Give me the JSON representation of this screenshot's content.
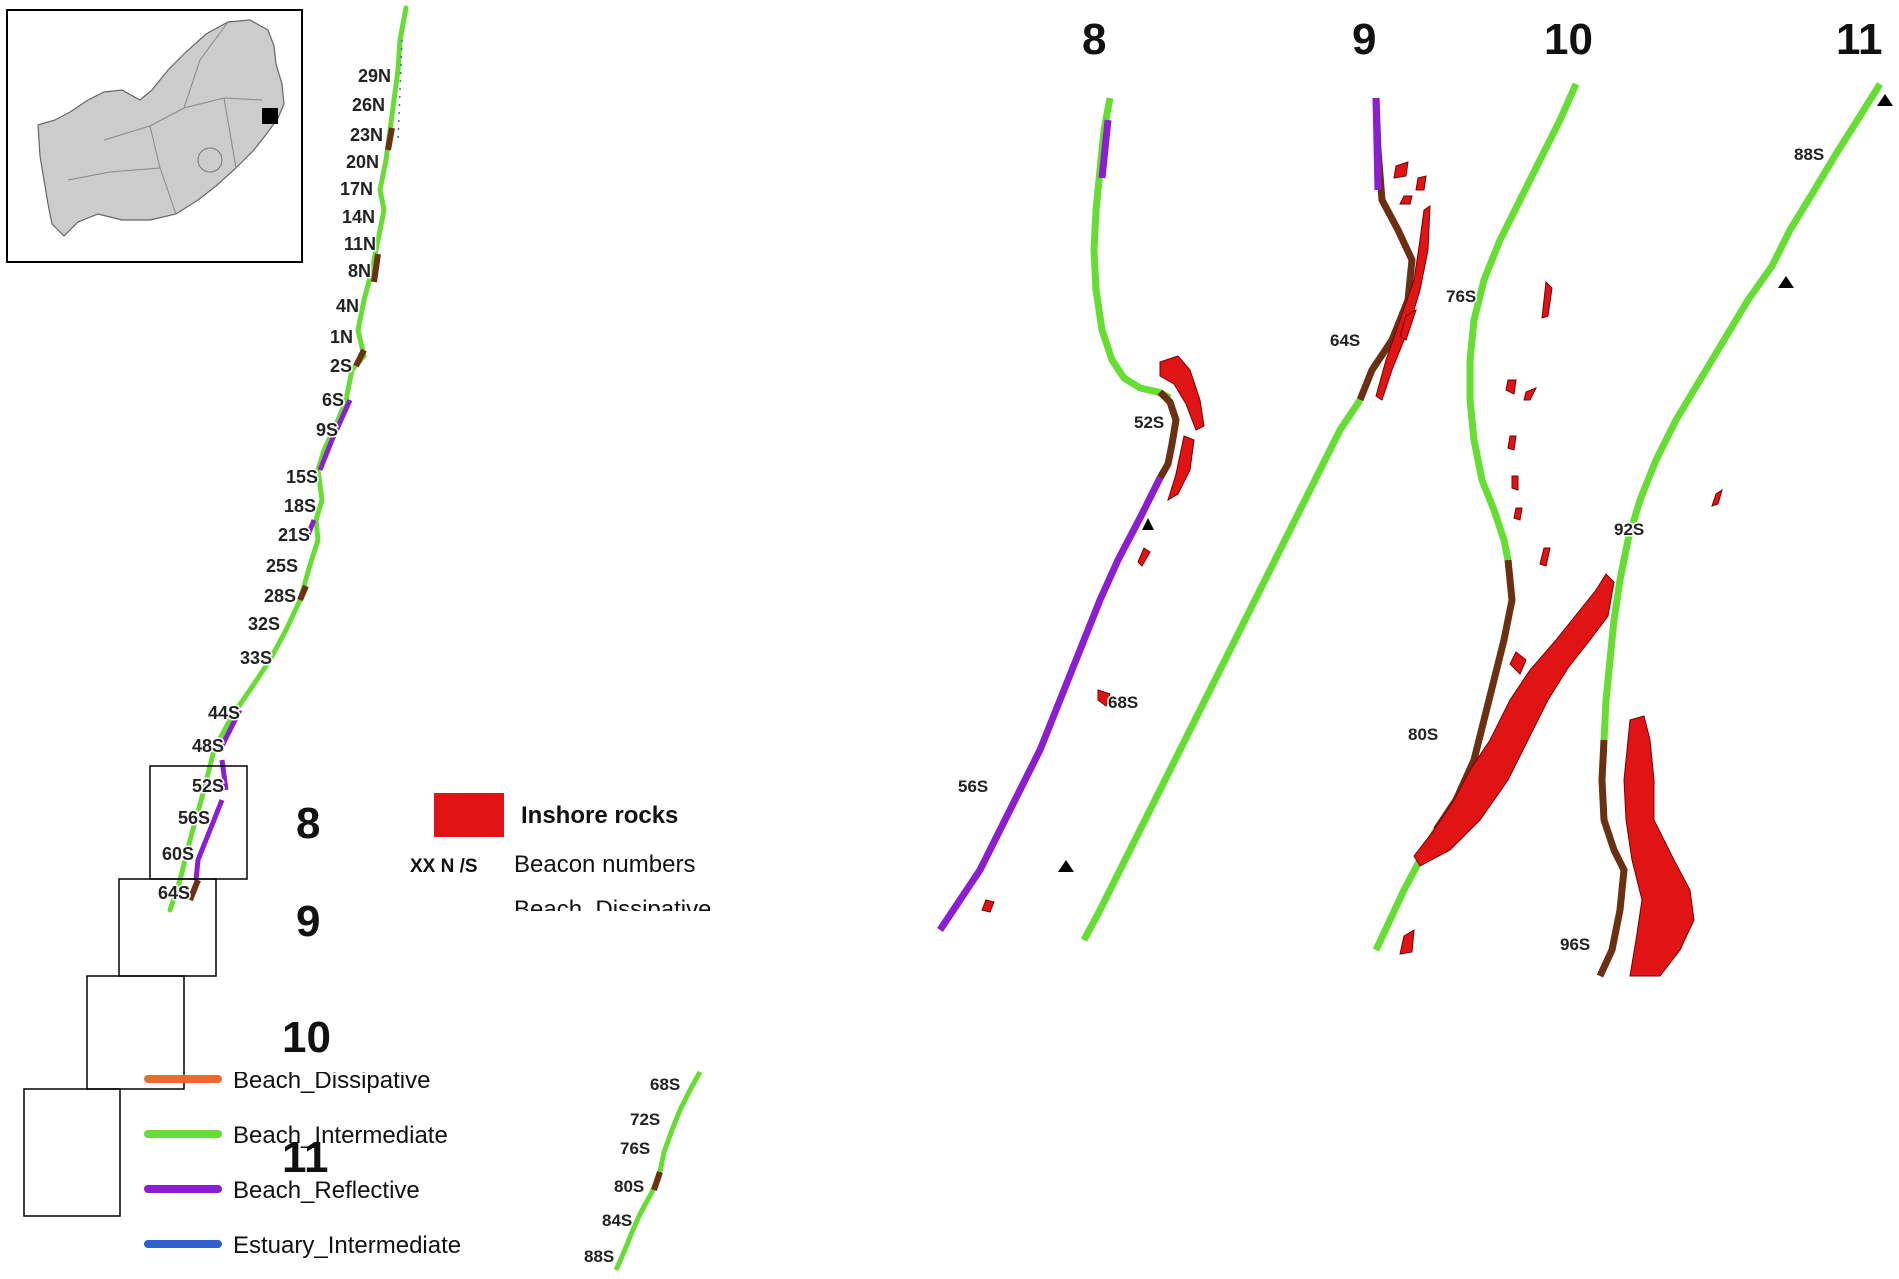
{
  "panels": {
    "p8": "8",
    "p9": "9",
    "p10": "10",
    "p11": "11"
  },
  "legend": {
    "inshore_rocks": "Inshore rocks",
    "beacon_code": "XX N /S",
    "beacon_label": "Beacon numbers",
    "cut_label": "Beach_Dissipative",
    "classes": [
      {
        "label": "Beach_Dissipative",
        "color": "#ee6a2c"
      },
      {
        "label": "Beach_Intermediate",
        "color": "#66dd33"
      },
      {
        "label": "Beach_Reflective",
        "color": "#8a1ed0"
      },
      {
        "label": "Estuary_Intermediate",
        "color": "#2f5fcf"
      }
    ]
  },
  "colors": {
    "intermediate": "#66dd33",
    "reflective": "#8a1ed0",
    "boulder": "#6b2f12",
    "rocks": "#e01414",
    "land": "#cccccc"
  },
  "beacons": {
    "overview": [
      "29N",
      "26N",
      "23N",
      "20N",
      "17N",
      "14N",
      "11N",
      "8N",
      "4N",
      "1N",
      "2S",
      "6S",
      "9S",
      "15S",
      "18S",
      "21S",
      "25S",
      "28S",
      "32S",
      "33S",
      "44S",
      "48S",
      "52S",
      "56S",
      "60S",
      "64S"
    ],
    "lower": [
      "68S",
      "72S",
      "76S",
      "80S",
      "84S",
      "88S"
    ],
    "panel8": [
      "52S",
      "56S"
    ],
    "panel9": [
      "64S",
      "68S"
    ],
    "panel10": [
      "76S",
      "80S"
    ],
    "panel11": [
      "88S",
      "92S",
      "96S"
    ]
  }
}
